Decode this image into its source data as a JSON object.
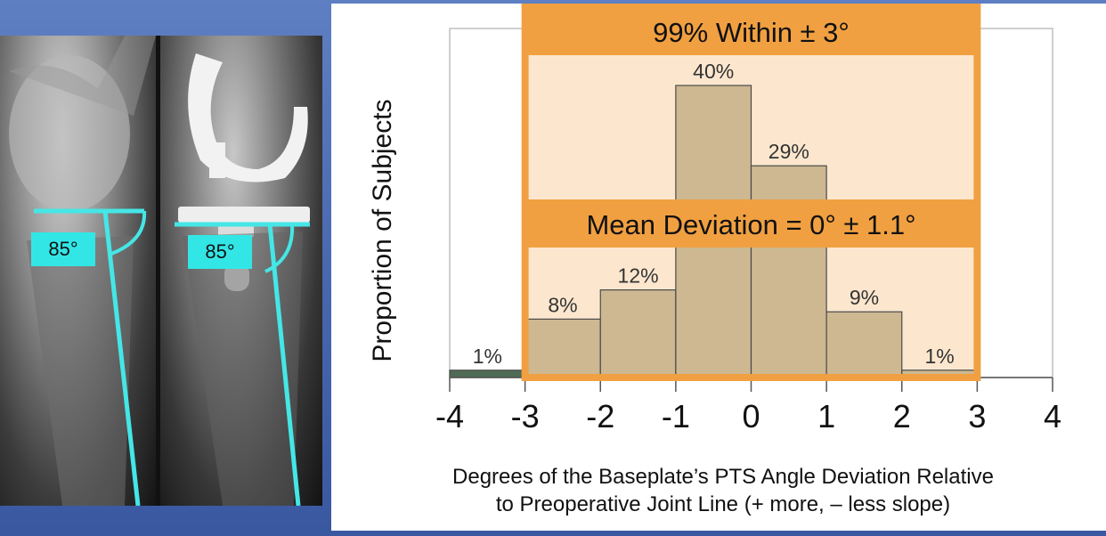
{
  "xray_panel": {
    "left_angle_label": "85°",
    "right_angle_label": "85°",
    "guide_color": "#45e6e6"
  },
  "chart_data": {
    "type": "bar",
    "title": "",
    "xlabel": "Degrees of the Baseplate’s PTS Angle Deviation Relative to Preoperative Joint Line (+ more, – less slope)",
    "xlabel_lines": [
      "Degrees of the Baseplate’s PTS Angle Deviation Relative",
      "to Preoperative Joint Line (+ more, – less slope)"
    ],
    "ylabel": "Proportion of Subjects",
    "xlim": [
      -4,
      4
    ],
    "ylim": [
      0,
      40
    ],
    "x_ticks": [
      "-4",
      "-3",
      "-2",
      "-1",
      "0",
      "1",
      "2",
      "3",
      "4"
    ],
    "bins": [
      {
        "from": -4,
        "to": -3,
        "value": 1,
        "label": "1%"
      },
      {
        "from": -3,
        "to": -2,
        "value": 8,
        "label": "8%"
      },
      {
        "from": -2,
        "to": -1,
        "value": 12,
        "label": "12%"
      },
      {
        "from": -1,
        "to": 0,
        "value": 40,
        "label": "40%"
      },
      {
        "from": 0,
        "to": 1,
        "value": 29,
        "label": "29%"
      },
      {
        "from": 1,
        "to": 2,
        "value": 9,
        "label": "9%"
      },
      {
        "from": 2,
        "to": 3,
        "value": 1,
        "label": "1%"
      }
    ],
    "annotations": {
      "within": "99% Within ± 3°",
      "mean": "Mean Deviation = 0° ± 1.1°",
      "highlight_range": [
        -3,
        3
      ]
    },
    "colors": {
      "bar": "#cdb891",
      "bar_outside": "#4f6b55",
      "highlight": "#f1a041",
      "highlight_fill": "#fbe3c6"
    },
    "grid": false,
    "legend": "none"
  }
}
